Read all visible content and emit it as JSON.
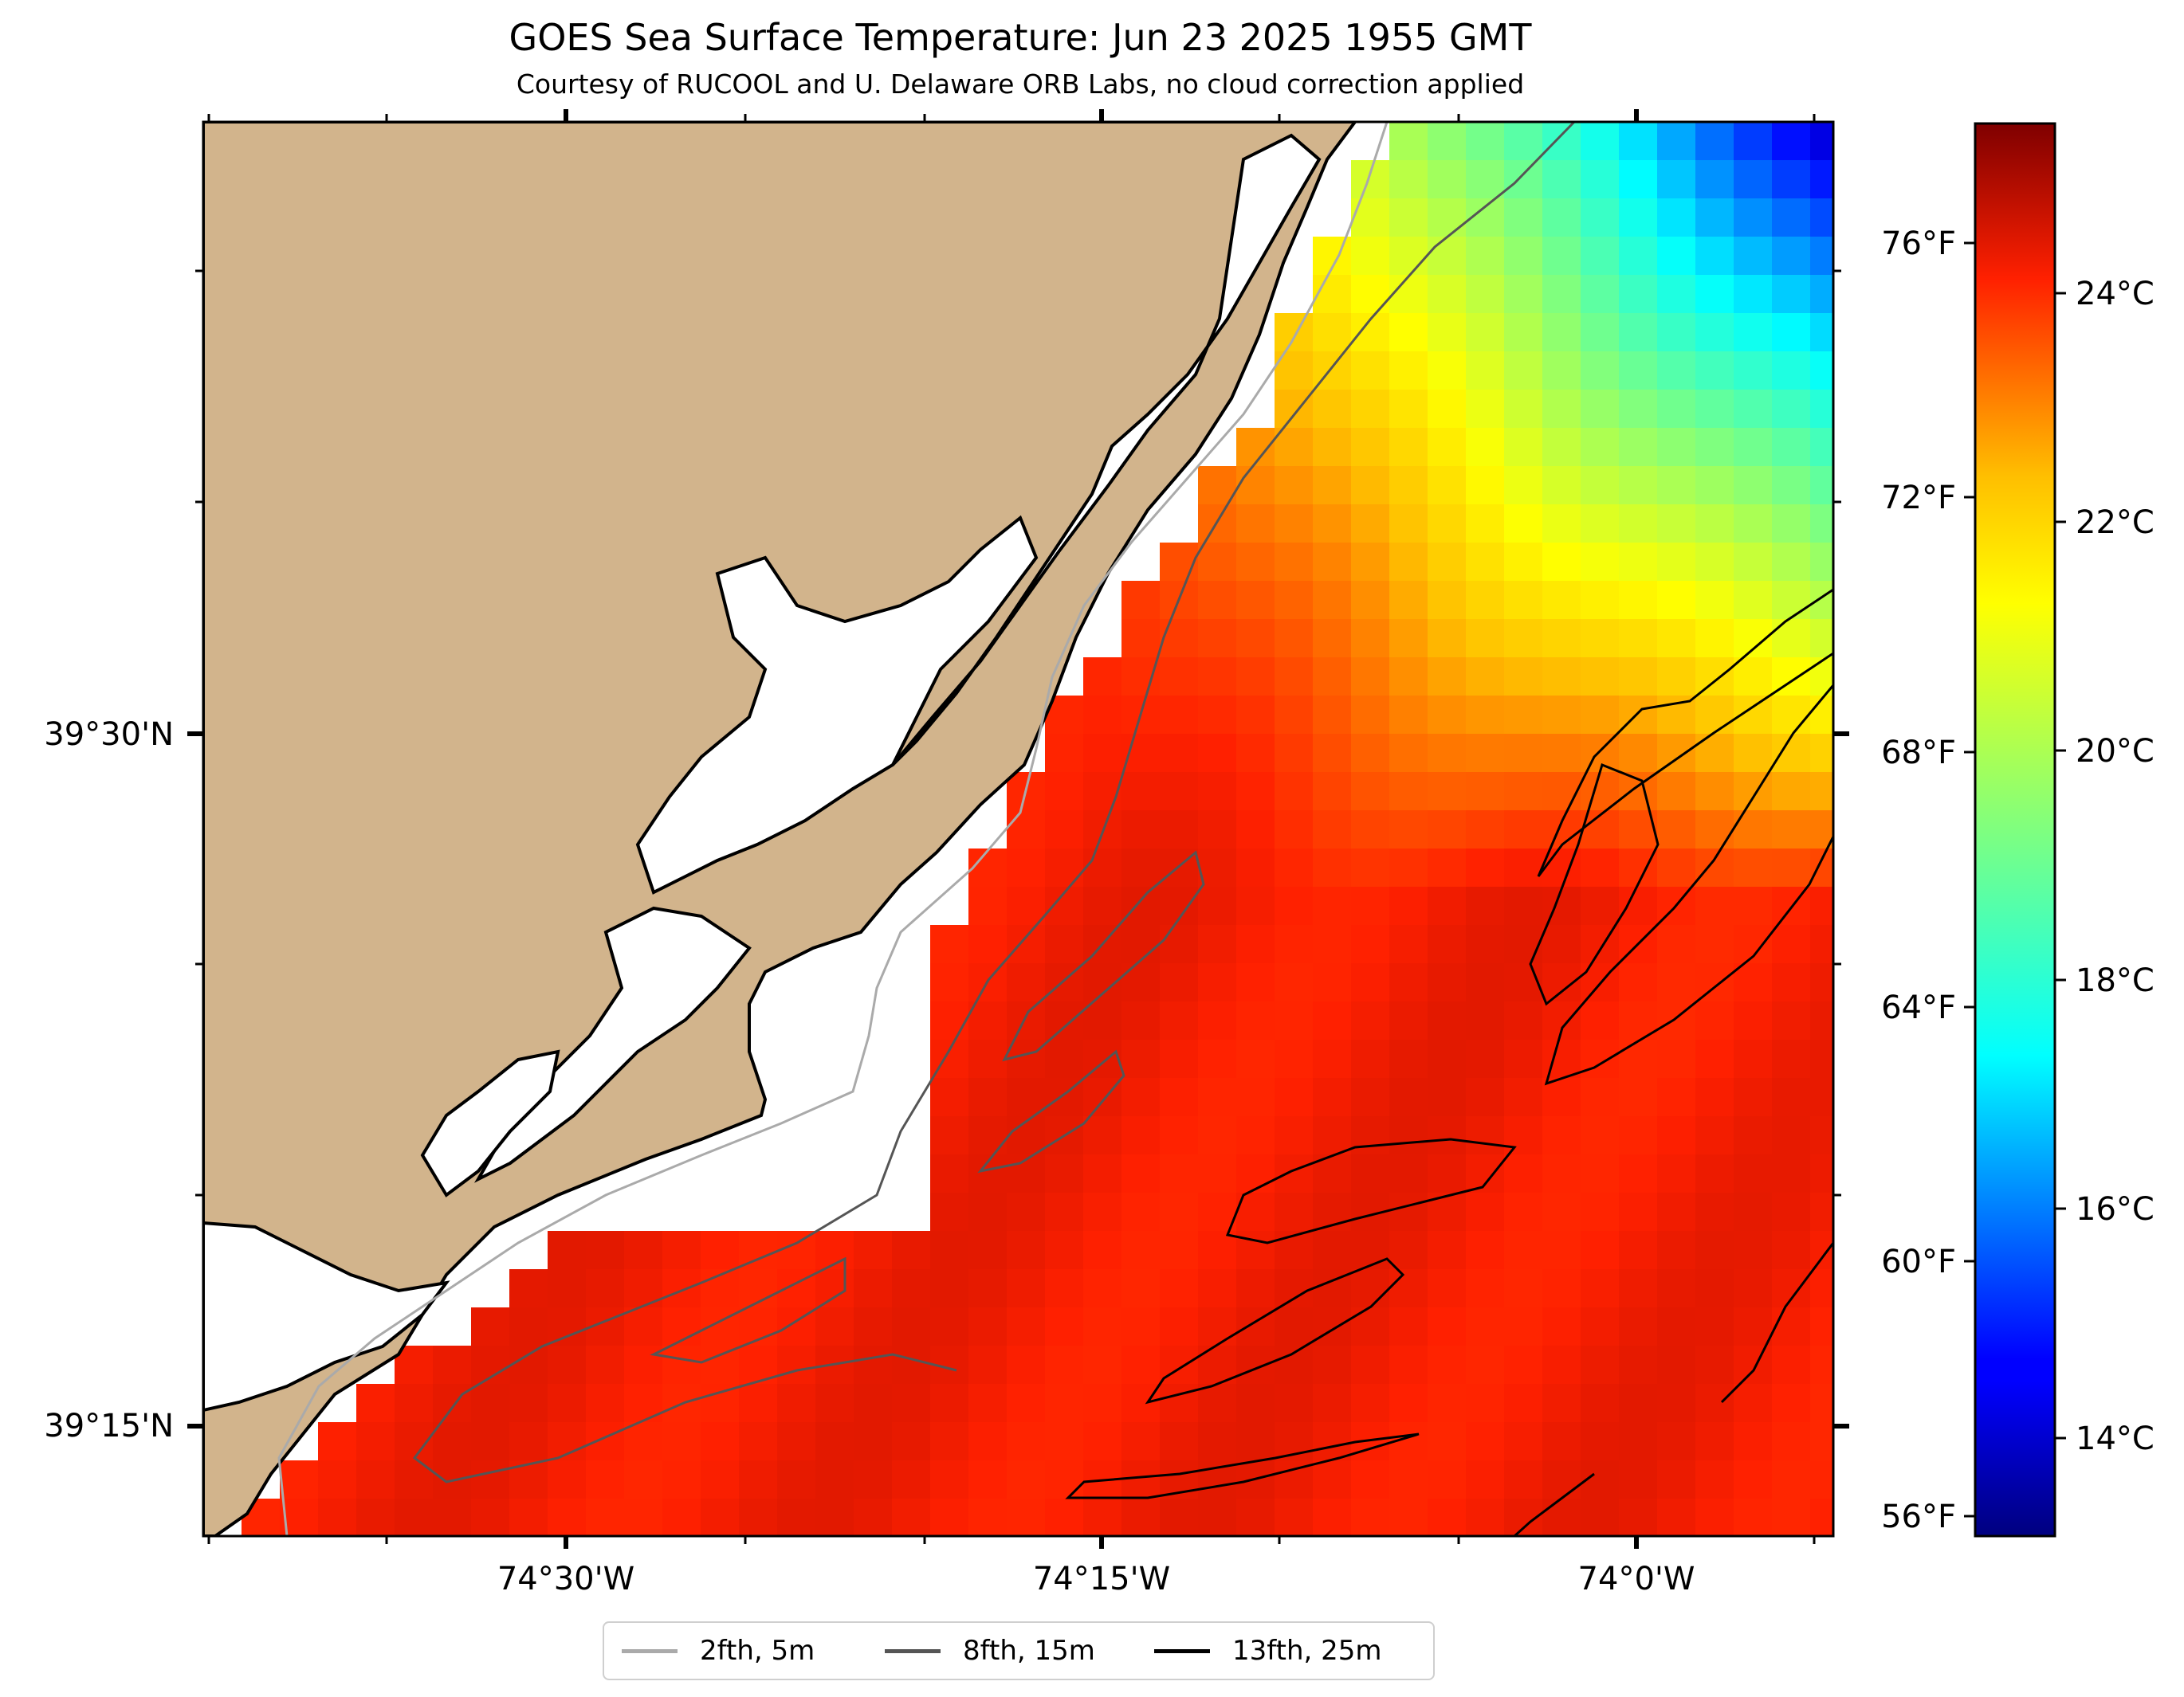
{
  "title": "GOES Sea Surface Temperature: Jun 23 2025 1955 GMT",
  "subtitle": "Courtesy of RUCOOL and U. Delaware ORB Labs, no cloud correction applied",
  "axes": {
    "x_ticks": [
      "74°30'W",
      "74°15'W",
      "74°0'W"
    ],
    "y_ticks": [
      "39°30'N",
      "39°15'N"
    ]
  },
  "colorbar": {
    "colormap": "jet",
    "celsius_range": [
      12.7,
      25.0
    ],
    "celsius_labels": [
      "24°C",
      "22°C",
      "20°C",
      "18°C",
      "16°C",
      "14°C"
    ],
    "fahrenheit_labels": [
      "76°F",
      "72°F",
      "68°F",
      "64°F",
      "60°F",
      "56°F"
    ]
  },
  "legend": [
    {
      "label": "2fth, 5m",
      "color": "#aaaaaa"
    },
    {
      "label": "8fth, 15m",
      "color": "#555555"
    },
    {
      "label": "13fth, 25m",
      "color": "#000000"
    }
  ],
  "colors": {
    "land": "#d2b48c",
    "water_missing": "#ffffff",
    "contour_2fth": "#aaaaaa",
    "contour_8fth": "#555555",
    "contour_13fth": "#000000"
  }
}
